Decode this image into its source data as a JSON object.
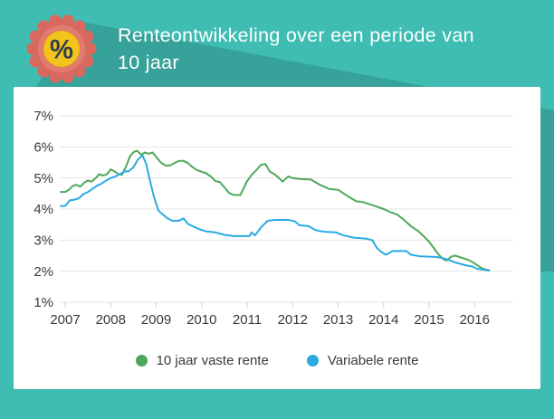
{
  "header": {
    "title_line1": "Renteontwikkeling over een periode van",
    "title_line2": "10 jaar",
    "badge_icon": "percent-badge-icon",
    "badge_symbol": "%"
  },
  "colors": {
    "background_teal": "#3fbdb3",
    "shadow_teal": "#36a69d",
    "card_white": "#ffffff",
    "title_text": "#ffffff",
    "axis_text": "#3a3a3a",
    "gridline": "#e4e4e4",
    "tick": "#cfcfcf",
    "fixed_rate_green": "#4fa85a",
    "variable_rate_blue": "#29abe2",
    "badge_rosette": "#d7695e",
    "badge_rosette_inner": "#e17b6e",
    "badge_circle_yellow": "#f2c41c",
    "badge_percent": "#333e4e"
  },
  "chart_data": {
    "type": "line",
    "title": "Renteontwikkeling over een periode van 10 jaar",
    "xlabel": "",
    "ylabel": "",
    "grid": "horizontal",
    "legend_position": "bottom",
    "x_min": 2006.88,
    "x_max": 2016.85,
    "y_min": 1,
    "y_max": 7,
    "y_ticks": [
      {
        "value": 7,
        "label": "7%"
      },
      {
        "value": 6,
        "label": "6%"
      },
      {
        "value": 5,
        "label": "5%"
      },
      {
        "value": 4,
        "label": "4%"
      },
      {
        "value": 3,
        "label": "3%"
      },
      {
        "value": 2,
        "label": "2%"
      },
      {
        "value": 1,
        "label": "1%"
      }
    ],
    "x_ticks": [
      {
        "value": 2007,
        "label": "2007"
      },
      {
        "value": 2008,
        "label": "2008"
      },
      {
        "value": 2009,
        "label": "2009"
      },
      {
        "value": 2010,
        "label": "2010"
      },
      {
        "value": 2011,
        "label": "2011"
      },
      {
        "value": 2012,
        "label": "2012"
      },
      {
        "value": 2013,
        "label": "2013"
      },
      {
        "value": 2014,
        "label": "2014"
      },
      {
        "value": 2015,
        "label": "2015"
      },
      {
        "value": 2016,
        "label": "2016"
      }
    ],
    "series": [
      {
        "name": "10 jaar vaste rente",
        "color": "#4fa85a",
        "points": [
          [
            2006.9,
            4.55
          ],
          [
            2007.0,
            4.55
          ],
          [
            2007.08,
            4.62
          ],
          [
            2007.17,
            4.75
          ],
          [
            2007.25,
            4.78
          ],
          [
            2007.33,
            4.72
          ],
          [
            2007.42,
            4.85
          ],
          [
            2007.5,
            4.92
          ],
          [
            2007.58,
            4.88
          ],
          [
            2007.67,
            5.0
          ],
          [
            2007.75,
            5.12
          ],
          [
            2007.83,
            5.08
          ],
          [
            2007.92,
            5.12
          ],
          [
            2008.0,
            5.28
          ],
          [
            2008.08,
            5.22
          ],
          [
            2008.17,
            5.12
          ],
          [
            2008.25,
            5.1
          ],
          [
            2008.33,
            5.35
          ],
          [
            2008.42,
            5.68
          ],
          [
            2008.5,
            5.83
          ],
          [
            2008.58,
            5.88
          ],
          [
            2008.67,
            5.75
          ],
          [
            2008.75,
            5.82
          ],
          [
            2008.83,
            5.78
          ],
          [
            2008.92,
            5.82
          ],
          [
            2009.0,
            5.68
          ],
          [
            2009.1,
            5.5
          ],
          [
            2009.2,
            5.4
          ],
          [
            2009.3,
            5.4
          ],
          [
            2009.4,
            5.48
          ],
          [
            2009.5,
            5.55
          ],
          [
            2009.6,
            5.55
          ],
          [
            2009.7,
            5.48
          ],
          [
            2009.8,
            5.35
          ],
          [
            2009.9,
            5.25
          ],
          [
            2010.0,
            5.2
          ],
          [
            2010.1,
            5.15
          ],
          [
            2010.2,
            5.05
          ],
          [
            2010.3,
            4.9
          ],
          [
            2010.4,
            4.87
          ],
          [
            2010.5,
            4.7
          ],
          [
            2010.6,
            4.52
          ],
          [
            2010.7,
            4.45
          ],
          [
            2010.85,
            4.45
          ],
          [
            2011.0,
            4.9
          ],
          [
            2011.1,
            5.1
          ],
          [
            2011.2,
            5.25
          ],
          [
            2011.3,
            5.42
          ],
          [
            2011.4,
            5.45
          ],
          [
            2011.5,
            5.2
          ],
          [
            2011.6,
            5.12
          ],
          [
            2011.7,
            5.0
          ],
          [
            2011.78,
            4.88
          ],
          [
            2011.9,
            5.05
          ],
          [
            2012.0,
            5.0
          ],
          [
            2012.15,
            4.97
          ],
          [
            2012.4,
            4.95
          ],
          [
            2012.6,
            4.78
          ],
          [
            2012.8,
            4.65
          ],
          [
            2013.0,
            4.62
          ],
          [
            2013.1,
            4.52
          ],
          [
            2013.25,
            4.38
          ],
          [
            2013.4,
            4.25
          ],
          [
            2013.55,
            4.22
          ],
          [
            2013.7,
            4.15
          ],
          [
            2013.85,
            4.08
          ],
          [
            2014.0,
            4.0
          ],
          [
            2014.15,
            3.9
          ],
          [
            2014.3,
            3.82
          ],
          [
            2014.45,
            3.65
          ],
          [
            2014.6,
            3.45
          ],
          [
            2014.75,
            3.3
          ],
          [
            2014.9,
            3.1
          ],
          [
            2015.0,
            2.95
          ],
          [
            2015.1,
            2.75
          ],
          [
            2015.2,
            2.55
          ],
          [
            2015.3,
            2.4
          ],
          [
            2015.38,
            2.34
          ],
          [
            2015.5,
            2.48
          ],
          [
            2015.58,
            2.5
          ],
          [
            2015.7,
            2.44
          ],
          [
            2015.85,
            2.37
          ],
          [
            2015.95,
            2.3
          ],
          [
            2016.05,
            2.2
          ],
          [
            2016.15,
            2.1
          ],
          [
            2016.25,
            2.05
          ],
          [
            2016.32,
            2.03
          ]
        ]
      },
      {
        "name": "Variabele rente",
        "color": "#29abe2",
        "points": [
          [
            2006.9,
            4.1
          ],
          [
            2007.0,
            4.1
          ],
          [
            2007.1,
            4.28
          ],
          [
            2007.2,
            4.3
          ],
          [
            2007.3,
            4.35
          ],
          [
            2007.4,
            4.48
          ],
          [
            2007.5,
            4.55
          ],
          [
            2007.6,
            4.65
          ],
          [
            2007.7,
            4.75
          ],
          [
            2007.8,
            4.82
          ],
          [
            2007.9,
            4.92
          ],
          [
            2008.0,
            5.0
          ],
          [
            2008.1,
            5.05
          ],
          [
            2008.2,
            5.12
          ],
          [
            2008.3,
            5.2
          ],
          [
            2008.4,
            5.22
          ],
          [
            2008.5,
            5.35
          ],
          [
            2008.6,
            5.6
          ],
          [
            2008.7,
            5.72
          ],
          [
            2008.78,
            5.45
          ],
          [
            2008.85,
            5.0
          ],
          [
            2008.95,
            4.4
          ],
          [
            2009.05,
            3.95
          ],
          [
            2009.15,
            3.82
          ],
          [
            2009.25,
            3.7
          ],
          [
            2009.35,
            3.62
          ],
          [
            2009.5,
            3.62
          ],
          [
            2009.6,
            3.7
          ],
          [
            2009.7,
            3.52
          ],
          [
            2009.8,
            3.45
          ],
          [
            2009.95,
            3.35
          ],
          [
            2010.1,
            3.28
          ],
          [
            2010.3,
            3.25
          ],
          [
            2010.5,
            3.17
          ],
          [
            2010.7,
            3.13
          ],
          [
            2010.9,
            3.13
          ],
          [
            2011.05,
            3.13
          ],
          [
            2011.1,
            3.25
          ],
          [
            2011.17,
            3.15
          ],
          [
            2011.3,
            3.4
          ],
          [
            2011.45,
            3.62
          ],
          [
            2011.6,
            3.65
          ],
          [
            2011.9,
            3.65
          ],
          [
            2012.05,
            3.6
          ],
          [
            2012.15,
            3.48
          ],
          [
            2012.35,
            3.45
          ],
          [
            2012.5,
            3.32
          ],
          [
            2012.7,
            3.27
          ],
          [
            2012.95,
            3.25
          ],
          [
            2013.1,
            3.16
          ],
          [
            2013.35,
            3.08
          ],
          [
            2013.6,
            3.05
          ],
          [
            2013.75,
            3.0
          ],
          [
            2013.85,
            2.75
          ],
          [
            2013.95,
            2.62
          ],
          [
            2014.05,
            2.53
          ],
          [
            2014.2,
            2.65
          ],
          [
            2014.5,
            2.65
          ],
          [
            2014.6,
            2.53
          ],
          [
            2014.8,
            2.48
          ],
          [
            2015.15,
            2.46
          ],
          [
            2015.3,
            2.42
          ],
          [
            2015.45,
            2.35
          ],
          [
            2015.6,
            2.27
          ],
          [
            2015.8,
            2.19
          ],
          [
            2015.95,
            2.15
          ],
          [
            2016.05,
            2.08
          ],
          [
            2016.2,
            2.05
          ],
          [
            2016.32,
            2.02
          ]
        ]
      }
    ],
    "legend": [
      "10 jaar vaste rente",
      "Variabele rente"
    ]
  }
}
